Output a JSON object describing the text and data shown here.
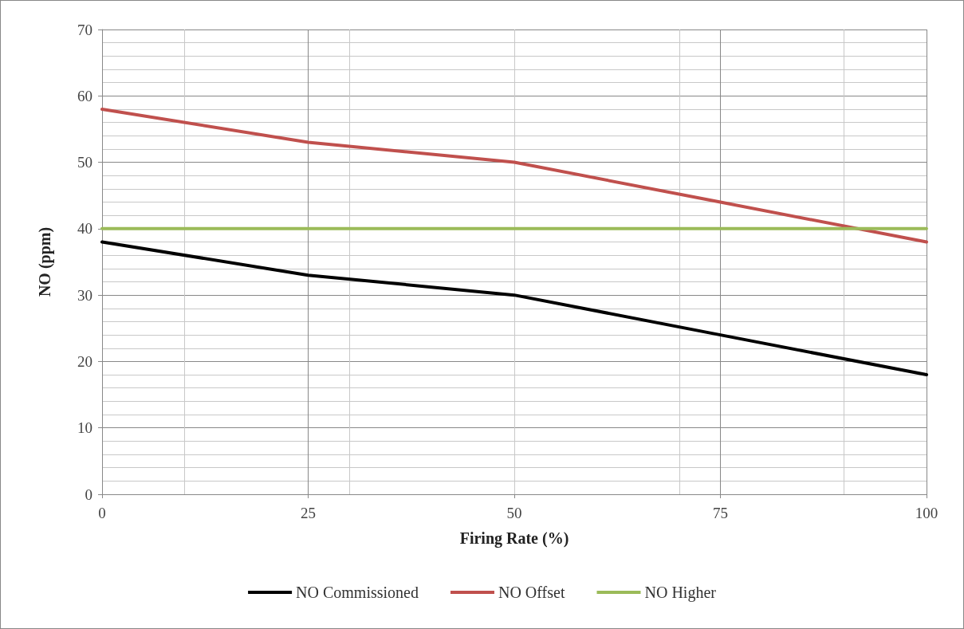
{
  "chart_data": {
    "type": "line",
    "xlabel": "Firing Rate (%)",
    "ylabel": "NO (ppm)",
    "x": [
      0,
      25,
      50,
      75,
      100
    ],
    "series": [
      {
        "name": "NO Commissioned",
        "color": "#000000",
        "values": [
          38,
          33,
          30,
          24,
          18
        ]
      },
      {
        "name": "NO Offset",
        "color": "#c0504d",
        "values": [
          58,
          53,
          50,
          44,
          38
        ]
      },
      {
        "name": "NO Higher",
        "color": "#9bbb59",
        "values": [
          40,
          40,
          40,
          40,
          40
        ]
      }
    ],
    "xlim": [
      0,
      100
    ],
    "xticks": [
      0,
      25,
      50,
      75,
      100
    ],
    "ylim": [
      0,
      70
    ],
    "yticks": [
      0,
      10,
      20,
      30,
      40,
      50,
      60,
      70
    ],
    "grid": true,
    "legend": "bottom",
    "marker": "none",
    "line_style": "solid"
  }
}
